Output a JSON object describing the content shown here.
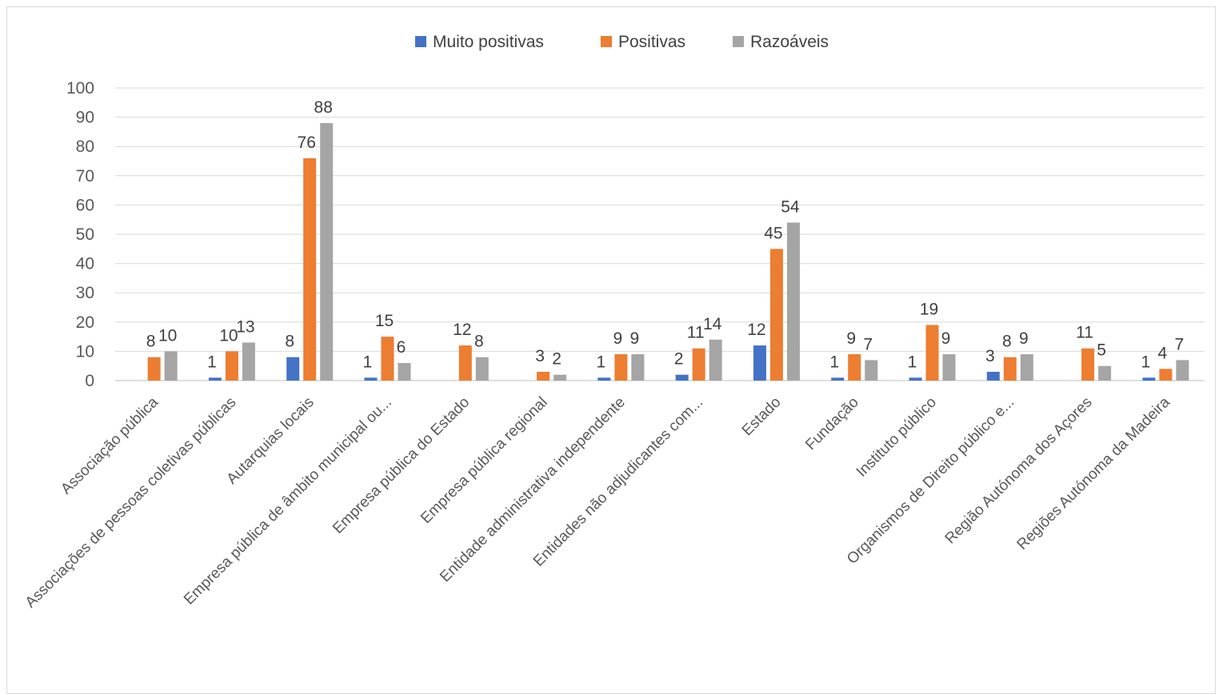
{
  "chart_data": {
    "type": "bar",
    "title": "",
    "xlabel": "",
    "ylabel": "",
    "ylim": [
      0,
      100
    ],
    "yticks": [
      0,
      10,
      20,
      30,
      40,
      50,
      60,
      70,
      80,
      90,
      100
    ],
    "grid": true,
    "legend_position": "top",
    "categories": [
      "Associação pública",
      "Associações de pessoas coletivas públicas",
      "Autarquias locais",
      "Empresa pública de âmbito municipal ou...",
      "Empresa pública do Estado",
      "Empresa pública regional",
      "Entidade administrativa independente",
      "Entidades não adjudicantes com...",
      "Estado",
      "Fundação",
      "Instituto público",
      "Organismos de Direito público e...",
      "Região Autónoma dos Açores",
      "Regiões Autónoma da Madeira"
    ],
    "series": [
      {
        "name": "Muito positivas",
        "color": "#4472c4",
        "values": [
          null,
          1,
          8,
          1,
          null,
          null,
          1,
          2,
          12,
          1,
          1,
          3,
          null,
          1
        ]
      },
      {
        "name": "Positivas",
        "color": "#ed7d31",
        "values": [
          8,
          10,
          76,
          15,
          12,
          3,
          9,
          11,
          45,
          9,
          19,
          8,
          11,
          4
        ]
      },
      {
        "name": "Razoáveis",
        "color": "#a5a5a5",
        "values": [
          10,
          13,
          88,
          6,
          8,
          2,
          9,
          14,
          54,
          7,
          9,
          9,
          5,
          7
        ]
      }
    ]
  }
}
